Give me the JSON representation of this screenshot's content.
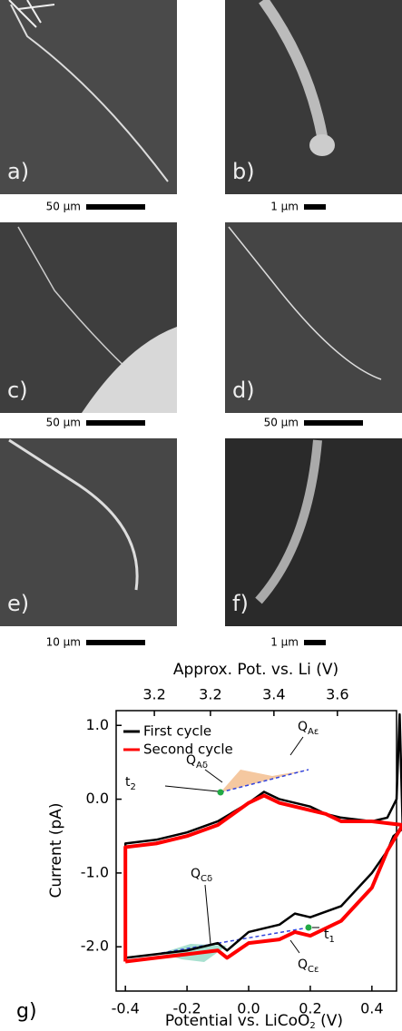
{
  "panels": [
    {
      "label": "a)",
      "scale": "50 µm"
    },
    {
      "label": "b)",
      "scale": "1 µm"
    },
    {
      "label": "c)",
      "scale": "50 µm"
    },
    {
      "label": "d)",
      "scale": "50 µm"
    },
    {
      "label": "e)",
      "scale": "10 µm"
    },
    {
      "label": "f)",
      "scale": "1 µm"
    }
  ],
  "chart_data": {
    "type": "line",
    "panel_label": "g)",
    "x_label": {
      "text": "Potential vs. LiCoO",
      "sub": "2",
      "tail": " (V)"
    },
    "y_label": "Current (pA)",
    "x2_label": "Approx. Pot. vs. Li (V)",
    "xlim": [
      -0.43,
      0.48
    ],
    "ylim": [
      -2.6,
      1.2
    ],
    "xticks": [
      -0.4,
      -0.2,
      {
        "value": 0,
        "label": "0.0"
      },
      0.2,
      0.4
    ],
    "yticks": [
      {
        "value": 1,
        "label": "1.0"
      },
      {
        "value": 0,
        "label": "0.0"
      },
      {
        "value": -1,
        "label": "-1.0"
      },
      {
        "value": -2,
        "label": "-2.0"
      }
    ],
    "x2ticks": [
      {
        "value": -0.306,
        "label": "3.2"
      },
      {
        "value": -0.124,
        "label": "3.2"
      },
      {
        "value": 0.082,
        "label": "3.4"
      },
      {
        "value": 0.288,
        "label": "3.6"
      }
    ],
    "legend": "top-left",
    "series": [
      {
        "name": "First cycle",
        "color": "#000000",
        "x": [
          -0.4,
          -0.4,
          -0.3,
          -0.2,
          -0.1,
          0.0,
          0.05,
          0.1,
          0.2,
          0.25,
          0.3,
          0.4,
          0.45,
          0.48,
          0.49,
          0.5,
          0.47,
          0.45,
          0.4,
          0.3,
          0.2,
          0.15,
          0.1,
          0.0,
          -0.07,
          -0.1,
          -0.2,
          -0.3,
          -0.4
        ],
        "values": [
          -2.15,
          -0.6,
          -0.55,
          -0.45,
          -0.3,
          -0.05,
          0.1,
          0.0,
          -0.1,
          -0.2,
          -0.25,
          -0.3,
          -0.25,
          0.0,
          1.15,
          -0.4,
          -0.5,
          -0.7,
          -1.0,
          -1.45,
          -1.6,
          -1.55,
          -1.7,
          -1.8,
          -2.05,
          -1.95,
          -2.05,
          -2.1,
          -2.15
        ]
      },
      {
        "name": "Second cycle",
        "color": "#ff0000",
        "x": [
          -0.4,
          -0.4,
          -0.3,
          -0.2,
          -0.1,
          0.0,
          0.05,
          0.1,
          0.2,
          0.25,
          0.3,
          0.4,
          0.5,
          0.45,
          0.4,
          0.3,
          0.2,
          0.15,
          0.1,
          0.0,
          -0.07,
          -0.1,
          -0.2,
          -0.3,
          -0.4
        ],
        "values": [
          -2.2,
          -0.65,
          -0.6,
          -0.5,
          -0.35,
          -0.05,
          0.05,
          -0.05,
          -0.15,
          -0.2,
          -0.3,
          -0.3,
          -0.35,
          -0.7,
          -1.2,
          -1.65,
          -1.85,
          -1.8,
          -1.9,
          -1.95,
          -2.15,
          -2.05,
          -2.1,
          -2.15,
          -2.2
        ]
      }
    ],
    "annotations": [
      {
        "text": "Q",
        "sub": "Aδ"
      },
      {
        "text": "Q",
        "sub": "Aε"
      },
      {
        "text": "t",
        "sub": "2"
      },
      {
        "text": "Q",
        "sub": "Cδ"
      },
      {
        "text": "t",
        "sub": "1"
      },
      {
        "text": "Q",
        "sub": "Cε"
      }
    ]
  }
}
